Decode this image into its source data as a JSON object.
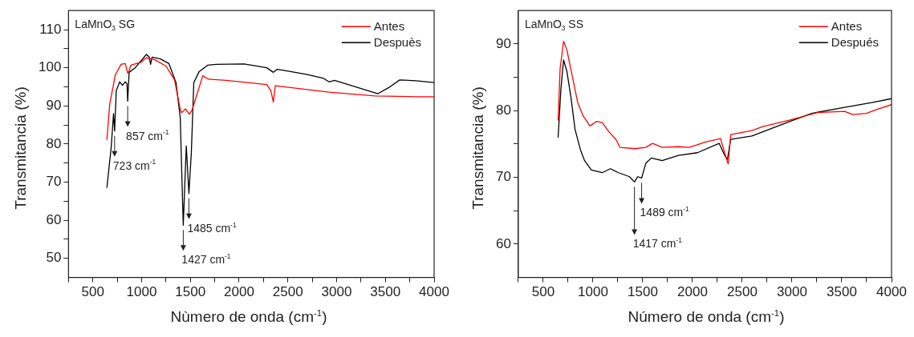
{
  "chart_data": [
    {
      "type": "line",
      "xlabel": "Nùmero de onda (cm$^{-1}$)",
      "ylabel": "Transmitancia (%)",
      "legend": "top right",
      "xlim": [
        250,
        4000
      ],
      "ylim": [
        45,
        115
      ],
      "xticks": [
        {
          "value": 250,
          "label": null
        },
        500,
        {
          "value": 750,
          "label": null
        },
        1000,
        {
          "value": 1250,
          "label": null
        },
        1500,
        {
          "value": 1750,
          "label": null
        },
        2000,
        {
          "value": 2250,
          "label": null
        },
        2500,
        {
          "value": 2750,
          "label": null
        },
        3000,
        {
          "value": 3250,
          "label": null
        },
        3500,
        {
          "value": 3750,
          "label": null
        },
        4000
      ],
      "yticks": [
        50,
        {
          "value": 55,
          "label": null
        },
        60,
        {
          "value": 65,
          "label": null
        },
        70,
        {
          "value": 75,
          "label": null
        },
        80,
        {
          "value": 85,
          "label": null
        },
        90,
        {
          "value": 95,
          "label": null
        },
        100,
        {
          "value": 105,
          "label": null
        },
        110
      ],
      "annotations": [
        "LaMnO$_{3}$ SG",
        {
          "text": "723 cm$^{-1}$",
          "x": 723,
          "y": 83.4
        },
        {
          "text": "857 cm$^{-1}$",
          "x": 857,
          "y": 91.2
        },
        {
          "text": "1427 cm$^{-1}$",
          "x": 1427,
          "y": 58.7
        },
        {
          "text": "1485 cm$^{-1}$",
          "x": 1485,
          "y": 67.0
        }
      ],
      "series": [
        {
          "name": "Antes",
          "color": "#ff0000",
          "x": [
            644,
            673,
            731,
            789,
            832,
            857,
            870,
            890,
            991,
            1049,
            1136,
            1251,
            1338,
            1396,
            1410,
            1450,
            1490,
            1520,
            1627,
            1685,
            1865,
            2283,
            2325,
            2351,
            2371,
            2923,
            3396,
            3813,
            4000
          ],
          "values": [
            81.2,
            90.5,
            98.2,
            100.9,
            101.1,
            98.6,
            99.1,
            100.7,
            101.4,
            102.6,
            102.1,
            100.4,
            96.8,
            89.1,
            88.2,
            89.2,
            87.8,
            89.1,
            97.9,
            97.0,
            96.7,
            95.6,
            94.0,
            91.0,
            95.3,
            93.6,
            92.6,
            92.4,
            92.4
          ]
        },
        {
          "name": "Despuès",
          "color": "#000000",
          "x": [
            644,
            688,
            712,
            723,
            740,
            775,
            803,
            832,
            850,
            857,
            872,
            934,
            1049,
            1078,
            1092,
            1107,
            1194,
            1280,
            1353,
            1396,
            1427,
            1458,
            1485,
            1510,
            1535,
            1590,
            1680,
            1766,
            2050,
            2283,
            2351,
            2392,
            2504,
            2700,
            2867,
            2923,
            2978,
            3424,
            3535,
            3647,
            3813,
            4000
          ],
          "values": [
            68.6,
            79.2,
            88.0,
            83.4,
            94.0,
            96.3,
            95.4,
            96.3,
            95.8,
            91.2,
            98.8,
            100.0,
            103.5,
            102.8,
            100.9,
            102.8,
            102.3,
            101.1,
            96.1,
            86.9,
            58.7,
            79.5,
            67.0,
            77.8,
            96.1,
            99.0,
            100.7,
            100.9,
            101.0,
            100.0,
            98.8,
            99.6,
            99.1,
            98.2,
            97.2,
            96.3,
            96.7,
            93.2,
            94.8,
            96.8,
            96.6,
            96.1
          ]
        }
      ]
    },
    {
      "type": "line",
      "xlabel": "Número de onda (cm$^{-1}$)",
      "ylabel": "Transmitancia (%)",
      "legend": "top right",
      "xlim": [
        250,
        4000
      ],
      "ylim": [
        55,
        95
      ],
      "xticks": [
        {
          "value": 250,
          "label": null
        },
        500,
        {
          "value": 750,
          "label": null
        },
        1000,
        {
          "value": 1250,
          "label": null
        },
        1500,
        {
          "value": 1750,
          "label": null
        },
        2000,
        {
          "value": 2250,
          "label": null
        },
        2500,
        {
          "value": 2750,
          "label": null
        },
        3000,
        {
          "value": 3250,
          "label": null
        },
        3500,
        {
          "value": 3750,
          "label": null
        },
        4000
      ],
      "yticks": [
        60,
        {
          "value": 65,
          "label": null
        },
        70,
        {
          "value": 75,
          "label": null
        },
        80,
        {
          "value": 85,
          "label": null
        },
        90
      ],
      "annotations": [
        "LaMnO$_{3}$ SS",
        {
          "text": "1417 cm$^{-1}$",
          "x": 1417,
          "y": 69.3
        },
        {
          "text": "1489 cm$^{-1}$",
          "x": 1489,
          "y": 69.9
        }
      ],
      "series": [
        {
          "name": "Antes",
          "color": "#ff0000",
          "x": [
            650,
            670,
            705,
            738,
            793,
            847,
            902,
            970,
            1039,
            1093,
            1162,
            1230,
            1271,
            1421,
            1531,
            1599,
            1695,
            1859,
            1968,
            2132,
            2282,
            2323,
            2359,
            2384,
            2597,
            2707,
            2980,
            3254,
            3528,
            3610,
            3747,
            3856,
            4000
          ],
          "values": [
            78.6,
            86.3,
            90.4,
            89.1,
            85.1,
            81.2,
            79.2,
            77.7,
            78.4,
            78.2,
            76.8,
            75.7,
            74.5,
            74.3,
            74.5,
            75.1,
            74.5,
            74.6,
            74.5,
            75.3,
            75.8,
            73.7,
            72.0,
            76.4,
            77.0,
            77.6,
            78.6,
            79.7,
            79.9,
            79.4,
            79.6,
            80.2,
            80.9
          ]
        },
        {
          "name": "Después",
          "color": "#000000",
          "x": [
            650,
            678,
            705,
            738,
            779,
            820,
            875,
            916,
            984,
            1093,
            1175,
            1257,
            1367,
            1417,
            1449,
            1489,
            1531,
            1586,
            1695,
            1859,
            2050,
            2268,
            2323,
            2351,
            2384,
            2597,
            2980,
            3199,
            3528,
            3802,
            4000
          ],
          "values": [
            76.0,
            83.2,
            87.6,
            85.9,
            82.0,
            77.2,
            74.1,
            72.5,
            71.1,
            70.7,
            71.3,
            70.7,
            70.1,
            69.3,
            70.1,
            69.9,
            72.1,
            72.9,
            72.5,
            73.3,
            73.7,
            75.1,
            73.3,
            72.7,
            75.7,
            76.2,
            78.4,
            79.6,
            80.5,
            81.2,
            81.8
          ]
        }
      ]
    }
  ]
}
